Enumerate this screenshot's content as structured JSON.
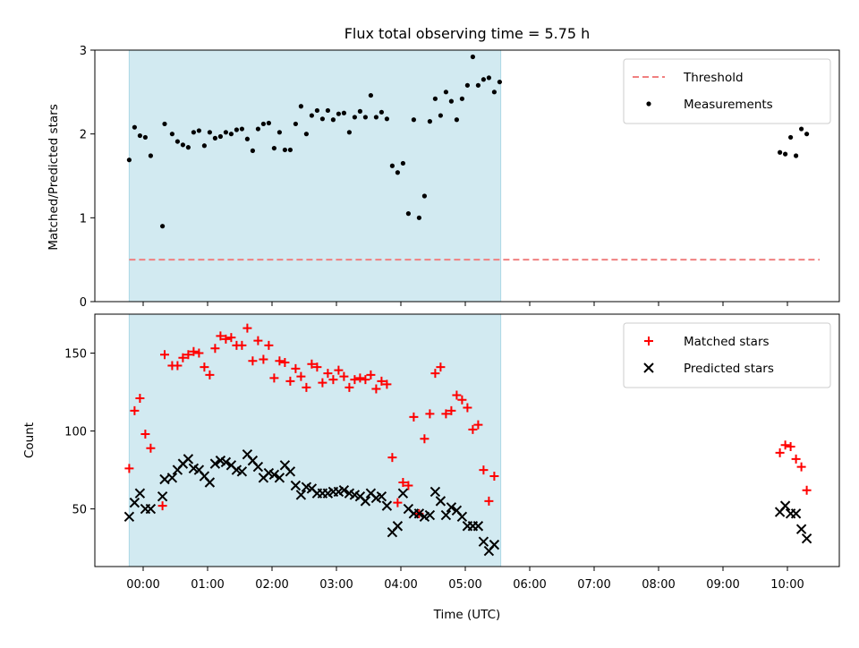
{
  "chart_data": [
    {
      "type": "scatter",
      "title": "Flux total observing time = 5.75 h",
      "xlabel": "",
      "ylabel": "Matched/Predicted stars",
      "ylim": [
        0,
        3
      ],
      "yticks": [
        0,
        1,
        2,
        3
      ],
      "shaded_span": [
        "23:47",
        "05:33"
      ],
      "shaded_color": "#add8e6",
      "legend_position": "top-right",
      "threshold": {
        "name": "Threshold",
        "value": 0.5,
        "x_range": [
          "23:47",
          "10:30"
        ],
        "color": "#f08080"
      },
      "series": [
        {
          "name": "Measurements",
          "color": "#000000",
          "points": [
            [
              "23:47",
              1.69
            ],
            [
              "23:52",
              2.08
            ],
            [
              "23:57",
              1.98
            ],
            [
              "00:02",
              1.96
            ],
            [
              "00:07",
              1.74
            ],
            [
              "00:18",
              0.9
            ],
            [
              "00:20",
              2.12
            ],
            [
              "00:27",
              2.0
            ],
            [
              "00:32",
              1.91
            ],
            [
              "00:37",
              1.87
            ],
            [
              "00:42",
              1.84
            ],
            [
              "00:47",
              2.02
            ],
            [
              "00:52",
              2.04
            ],
            [
              "00:57",
              1.86
            ],
            [
              "01:02",
              2.02
            ],
            [
              "01:07",
              1.95
            ],
            [
              "01:12",
              1.97
            ],
            [
              "01:17",
              2.02
            ],
            [
              "01:22",
              2.0
            ],
            [
              "01:27",
              2.05
            ],
            [
              "01:32",
              2.06
            ],
            [
              "01:37",
              1.94
            ],
            [
              "01:42",
              1.8
            ],
            [
              "01:47",
              2.06
            ],
            [
              "01:52",
              2.12
            ],
            [
              "01:57",
              2.13
            ],
            [
              "02:02",
              1.83
            ],
            [
              "02:07",
              2.02
            ],
            [
              "02:12",
              1.81
            ],
            [
              "02:17",
              1.81
            ],
            [
              "02:22",
              2.12
            ],
            [
              "02:27",
              2.33
            ],
            [
              "02:32",
              2.0
            ],
            [
              "02:37",
              2.22
            ],
            [
              "02:42",
              2.28
            ],
            [
              "02:47",
              2.18
            ],
            [
              "02:52",
              2.28
            ],
            [
              "02:57",
              2.17
            ],
            [
              "03:02",
              2.24
            ],
            [
              "03:07",
              2.25
            ],
            [
              "03:12",
              2.02
            ],
            [
              "03:17",
              2.2
            ],
            [
              "03:22",
              2.27
            ],
            [
              "03:27",
              2.2
            ],
            [
              "03:32",
              2.46
            ],
            [
              "03:37",
              2.2
            ],
            [
              "03:42",
              2.26
            ],
            [
              "03:47",
              2.18
            ],
            [
              "03:52",
              1.62
            ],
            [
              "03:57",
              1.54
            ],
            [
              "04:02",
              1.65
            ],
            [
              "04:07",
              1.05
            ],
            [
              "04:12",
              2.17
            ],
            [
              "04:17",
              1.0
            ],
            [
              "04:22",
              1.26
            ],
            [
              "04:27",
              2.15
            ],
            [
              "04:32",
              2.42
            ],
            [
              "04:37",
              2.22
            ],
            [
              "04:42",
              2.5
            ],
            [
              "04:47",
              2.39
            ],
            [
              "04:52",
              2.17
            ],
            [
              "04:57",
              2.42
            ],
            [
              "05:02",
              2.58
            ],
            [
              "05:07",
              2.92
            ],
            [
              "05:12",
              2.58
            ],
            [
              "05:17",
              2.65
            ],
            [
              "05:22",
              2.67
            ],
            [
              "05:27",
              2.5
            ],
            [
              "05:32",
              2.62
            ],
            [
              "09:53",
              1.78
            ],
            [
              "09:58",
              1.76
            ],
            [
              "10:03",
              1.96
            ],
            [
              "10:08",
              1.74
            ],
            [
              "10:13",
              2.06
            ],
            [
              "10:18",
              2.0
            ]
          ]
        }
      ]
    },
    {
      "type": "scatter",
      "title": "",
      "xlabel": "Time (UTC)",
      "ylabel": "Count",
      "ylim": [
        13,
        175
      ],
      "yticks": [
        50,
        100,
        150
      ],
      "xticks": [
        "00:00",
        "01:00",
        "02:00",
        "03:00",
        "04:00",
        "05:00",
        "06:00",
        "07:00",
        "08:00",
        "09:00",
        "10:00"
      ],
      "shaded_span": [
        "23:47",
        "05:33"
      ],
      "shaded_color": "#add8e6",
      "legend_position": "top-right",
      "series": [
        {
          "name": "Matched stars",
          "marker": "+",
          "color": "#ff0000",
          "points": [
            [
              "23:47",
              76
            ],
            [
              "23:52",
              113
            ],
            [
              "23:57",
              121
            ],
            [
              "00:02",
              98
            ],
            [
              "00:07",
              89
            ],
            [
              "00:18",
              52
            ],
            [
              "00:20",
              149
            ],
            [
              "00:27",
              142
            ],
            [
              "00:32",
              142
            ],
            [
              "00:37",
              147
            ],
            [
              "00:42",
              149
            ],
            [
              "00:47",
              151
            ],
            [
              "00:52",
              150
            ],
            [
              "00:57",
              141
            ],
            [
              "01:02",
              136
            ],
            [
              "01:07",
              153
            ],
            [
              "01:12",
              161
            ],
            [
              "01:17",
              159
            ],
            [
              "01:22",
              160
            ],
            [
              "01:27",
              155
            ],
            [
              "01:32",
              155
            ],
            [
              "01:37",
              166
            ],
            [
              "01:42",
              145
            ],
            [
              "01:47",
              158
            ],
            [
              "01:52",
              146
            ],
            [
              "01:57",
              155
            ],
            [
              "02:02",
              134
            ],
            [
              "02:07",
              145
            ],
            [
              "02:12",
              144
            ],
            [
              "02:17",
              132
            ],
            [
              "02:22",
              140
            ],
            [
              "02:27",
              135
            ],
            [
              "02:32",
              128
            ],
            [
              "02:37",
              143
            ],
            [
              "02:42",
              141
            ],
            [
              "02:47",
              131
            ],
            [
              "02:52",
              137
            ],
            [
              "02:57",
              133
            ],
            [
              "03:02",
              139
            ],
            [
              "03:07",
              135
            ],
            [
              "03:12",
              128
            ],
            [
              "03:17",
              133
            ],
            [
              "03:22",
              134
            ],
            [
              "03:27",
              133
            ],
            [
              "03:32",
              136
            ],
            [
              "03:37",
              127
            ],
            [
              "03:42",
              132
            ],
            [
              "03:47",
              130
            ],
            [
              "03:52",
              83
            ],
            [
              "03:57",
              54
            ],
            [
              "04:02",
              67
            ],
            [
              "04:07",
              65
            ],
            [
              "04:12",
              109
            ],
            [
              "04:17",
              47
            ],
            [
              "04:22",
              95
            ],
            [
              "04:27",
              111
            ],
            [
              "04:32",
              137
            ],
            [
              "04:37",
              141
            ],
            [
              "04:42",
              111
            ],
            [
              "04:47",
              113
            ],
            [
              "04:52",
              123
            ],
            [
              "04:57",
              120
            ],
            [
              "05:02",
              115
            ],
            [
              "05:07",
              101
            ],
            [
              "05:12",
              104
            ],
            [
              "05:17",
              75
            ],
            [
              "05:22",
              55
            ],
            [
              "05:27",
              71
            ],
            [
              "09:53",
              86
            ],
            [
              "09:58",
              91
            ],
            [
              "10:03",
              90
            ],
            [
              "10:08",
              82
            ],
            [
              "10:13",
              77
            ],
            [
              "10:18",
              62
            ]
          ]
        },
        {
          "name": "Predicted stars",
          "marker": "x",
          "color": "#000000",
          "points": [
            [
              "23:47",
              45
            ],
            [
              "23:52",
              54
            ],
            [
              "23:57",
              60
            ],
            [
              "00:02",
              50
            ],
            [
              "00:07",
              50
            ],
            [
              "00:18",
              58
            ],
            [
              "00:20",
              69
            ],
            [
              "00:27",
              70
            ],
            [
              "00:32",
              75
            ],
            [
              "00:37",
              79
            ],
            [
              "00:42",
              82
            ],
            [
              "00:47",
              76
            ],
            [
              "00:52",
              75
            ],
            [
              "00:57",
              71
            ],
            [
              "01:02",
              67
            ],
            [
              "01:07",
              79
            ],
            [
              "01:12",
              81
            ],
            [
              "01:17",
              80
            ],
            [
              "01:22",
              78
            ],
            [
              "01:27",
              75
            ],
            [
              "01:32",
              74
            ],
            [
              "01:37",
              85
            ],
            [
              "01:42",
              81
            ],
            [
              "01:47",
              77
            ],
            [
              "01:52",
              70
            ],
            [
              "01:57",
              73
            ],
            [
              "02:02",
              72
            ],
            [
              "02:07",
              70
            ],
            [
              "02:12",
              78
            ],
            [
              "02:17",
              74
            ],
            [
              "02:22",
              65
            ],
            [
              "02:27",
              59
            ],
            [
              "02:32",
              64
            ],
            [
              "02:37",
              63
            ],
            [
              "02:42",
              60
            ],
            [
              "02:47",
              60
            ],
            [
              "02:52",
              60
            ],
            [
              "02:57",
              61
            ],
            [
              "03:02",
              61
            ],
            [
              "03:07",
              62
            ],
            [
              "03:12",
              60
            ],
            [
              "03:17",
              59
            ],
            [
              "03:22",
              58
            ],
            [
              "03:27",
              55
            ],
            [
              "03:32",
              60
            ],
            [
              "03:37",
              57
            ],
            [
              "03:42",
              58
            ],
            [
              "03:47",
              52
            ],
            [
              "03:52",
              35
            ],
            [
              "03:57",
              39
            ],
            [
              "04:02",
              60
            ],
            [
              "04:07",
              50
            ],
            [
              "04:12",
              47
            ],
            [
              "04:17",
              47
            ],
            [
              "04:22",
              45
            ],
            [
              "04:27",
              46
            ],
            [
              "04:32",
              61
            ],
            [
              "04:37",
              55
            ],
            [
              "04:42",
              46
            ],
            [
              "04:47",
              51
            ],
            [
              "04:52",
              49
            ],
            [
              "04:57",
              45
            ],
            [
              "05:02",
              39
            ],
            [
              "05:07",
              39
            ],
            [
              "05:12",
              39
            ],
            [
              "05:17",
              29
            ],
            [
              "05:22",
              23
            ],
            [
              "05:27",
              27
            ],
            [
              "09:53",
              48
            ],
            [
              "09:58",
              52
            ],
            [
              "10:03",
              47
            ],
            [
              "10:08",
              47
            ],
            [
              "10:13",
              37
            ],
            [
              "10:18",
              31
            ]
          ]
        }
      ]
    }
  ]
}
